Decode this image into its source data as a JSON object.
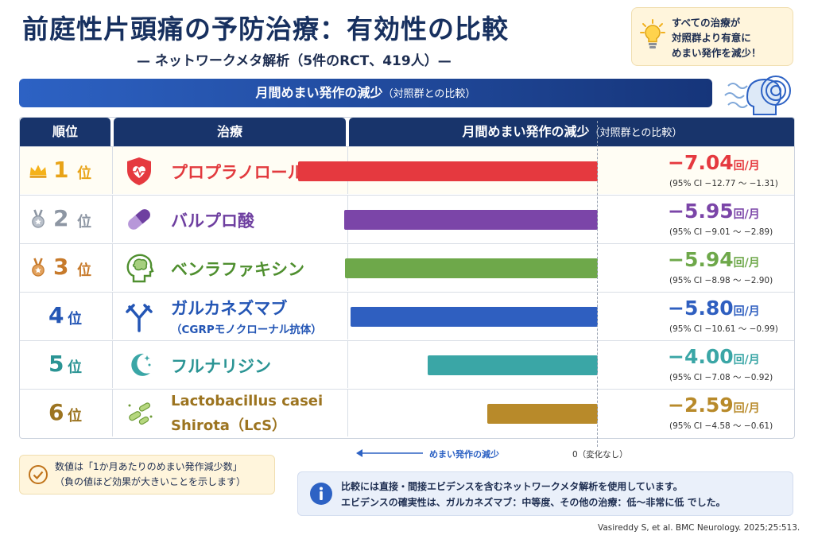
{
  "title": "前庭性片頭痛の予防治療：有効性の比較",
  "subtitle": "— ネットワークメタ解析（5件のRCT、419人）—",
  "note": {
    "line1": "すべての治療が",
    "line2": "対照群より有意に",
    "line3": "めまい発作を減少！"
  },
  "banner": {
    "main": "月間めまい発作の減少",
    "sub": "（対照群との比較）"
  },
  "table_headers": {
    "rank": "順位",
    "treatment": "治療",
    "result": "月間めまい発作の減少",
    "result_sub": "（対照群との比較）"
  },
  "rank_suffix": "位",
  "unit": "回/月",
  "rows": [
    {
      "rank": "1",
      "name": "プロプラノロール",
      "sub": "",
      "value": "−7.04",
      "ci": "(95% CI −12.77 〜 −1.31)",
      "color": "#e5393f",
      "name_color": "#e23a3e",
      "rank_color": "#e8a317",
      "icon": "heart-shield-icon",
      "medal": "crown-icon"
    },
    {
      "rank": "2",
      "name": "バルプロ酸",
      "sub": "",
      "value": "−5.95",
      "ci": "(95% CI −9.01 〜 −2.89)",
      "color": "#7b45a8",
      "name_color": "#6e3fa0",
      "rank_color": "#8d96a3",
      "icon": "capsule-icon",
      "medal": "silver-medal-icon"
    },
    {
      "rank": "3",
      "name": "ベンラファキシン",
      "sub": "",
      "value": "−5.94",
      "ci": "(95% CI −8.98 〜 −2.90)",
      "color": "#6ea84a",
      "name_color": "#4f8f2f",
      "rank_color": "#c77a2b",
      "icon": "brain-head-icon",
      "medal": "bronze-medal-icon"
    },
    {
      "rank": "4",
      "name": "ガルカネズマブ",
      "sub": "（CGRPモノクローナル抗体）",
      "value": "−5.80",
      "ci": "(95% CI −10.61 〜 −0.99)",
      "color": "#2f5fc0",
      "name_color": "#2456b5",
      "rank_color": "#2456b5",
      "icon": "antibody-icon",
      "medal": ""
    },
    {
      "rank": "5",
      "name": "フルナリジン",
      "sub": "",
      "value": "−4.00",
      "ci": "(95% CI −7.08 〜 −0.92)",
      "color": "#3aa6a6",
      "name_color": "#2a9494",
      "rank_color": "#2a9494",
      "icon": "moon-stars-icon",
      "medal": ""
    },
    {
      "rank": "6",
      "name": "Lactobacillus casei",
      "sub": "Shirota（LcS）",
      "value": "−2.59",
      "ci": "(95% CI −4.58 〜 −0.61)",
      "color": "#b88a2a",
      "name_color": "#9c7420",
      "rank_color": "#9c7420",
      "icon": "bacteria-icon",
      "medal": ""
    }
  ],
  "chart_data": {
    "type": "bar",
    "orientation": "horizontal",
    "title": "月間めまい発作の減少（対照群との比較）",
    "categories": [
      "プロプラノロール",
      "バルプロ酸",
      "ベンラファキシン",
      "ガルカネズマブ",
      "フルナリジン",
      "Lactobacillus casei Shirota（LcS）"
    ],
    "values": [
      -7.04,
      -5.95,
      -5.94,
      -5.8,
      -4.0,
      -2.59
    ],
    "ci_lower": [
      -12.77,
      -9.01,
      -8.98,
      -10.61,
      -7.08,
      -4.58
    ],
    "ci_upper": [
      -1.31,
      -2.89,
      -2.9,
      -0.99,
      -0.92,
      -0.61
    ],
    "colors": [
      "#e5393f",
      "#7b45a8",
      "#6ea84a",
      "#2f5fc0",
      "#3aa6a6",
      "#b88a2a"
    ],
    "xlabel": "めまい発作の減少",
    "zero_label": "0（変化なし）",
    "unit": "回/月"
  },
  "unit_note": {
    "line1": "数値は「1か月あたりのめまい発作減少数」",
    "line2": "（負の値ほど効果が大きいことを示します）"
  },
  "info": {
    "line1": "比較には直接・間接エビデンスを含むネットワークメタ解析を使用しています。",
    "line2": "エビデンスの確実性は、ガルカネズマブ：中等度、その他の治療：低〜非常に低 でした。"
  },
  "citation": "Vasireddy S, et al. BMC Neurology. 2025;25:513."
}
